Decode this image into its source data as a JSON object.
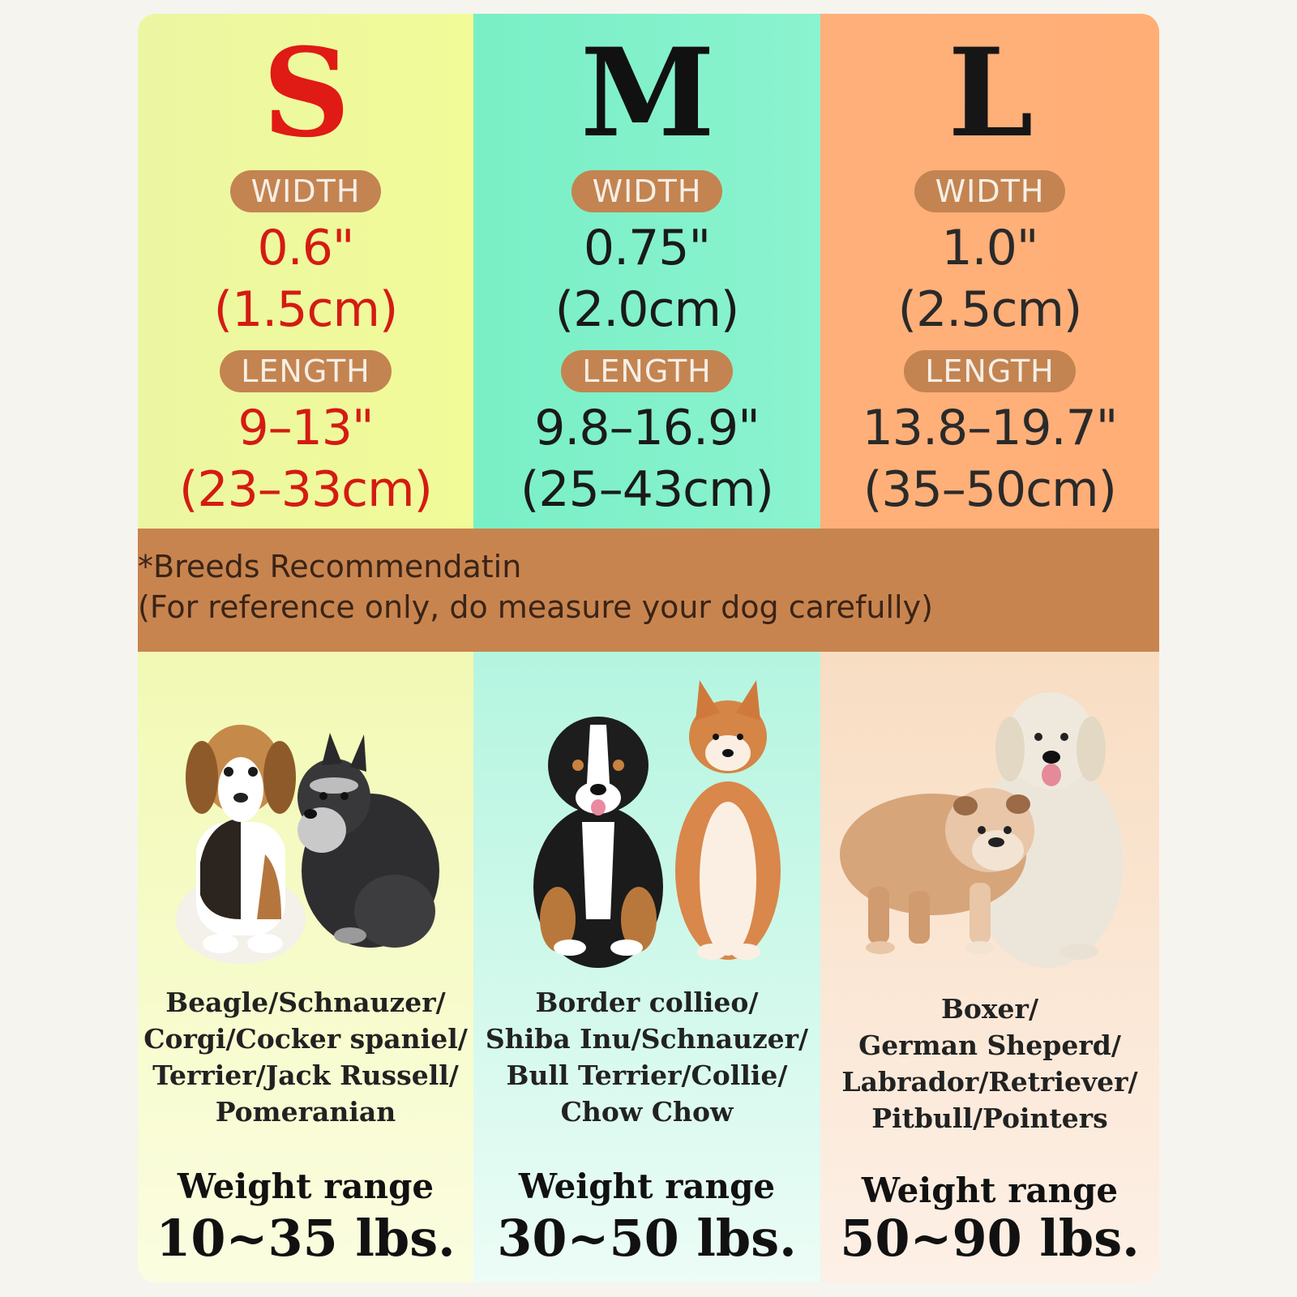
{
  "sizes": [
    {
      "letter": "S",
      "letter_color": "#e01a14",
      "value_color": "#d41b12",
      "width_label": "WIDTH",
      "width_in": "0.6\"",
      "width_cm": "(1.5cm)",
      "length_label": "LENGTH",
      "length_in": "9–13\"",
      "length_cm": "(23–33cm)",
      "breeds": [
        "Beagle/Schnauzer/",
        "Corgi/Cocker spaniel/",
        "Terrier/Jack Russell/",
        "Pomeranian"
      ],
      "weight_label": "Weight range",
      "weight_value": "10~35 lbs."
    },
    {
      "letter": "M",
      "letter_color": "#111111",
      "value_color": "#1a1a1a",
      "width_label": "WIDTH",
      "width_in": "0.75\"",
      "width_cm": "(2.0cm)",
      "length_label": "LENGTH",
      "length_in": "9.8–16.9\"",
      "length_cm": "(25–43cm)",
      "breeds": [
        "Border collieo/",
        "Shiba Inu/Schnauzer/",
        "Bull Terrier/Collie/",
        "Chow Chow"
      ],
      "weight_label": "Weight range",
      "weight_value": "30~50 lbs."
    },
    {
      "letter": "L",
      "letter_color": "#161616",
      "value_color": "#2a2a2a",
      "width_label": "WIDTH",
      "width_in": "1.0\"",
      "width_cm": "(2.5cm)",
      "length_label": "LENGTH",
      "length_in": "13.8–19.7\"",
      "length_cm": "(35–50cm)",
      "breeds": [
        "Boxer/",
        "German Sheperd/",
        "Labrador/Retriever/",
        "Pitbull/Pointers"
      ],
      "weight_label": "Weight range",
      "weight_value": "50~90 lbs."
    }
  ],
  "note": {
    "line1": "*Breeds Recommendatin",
    "line2": "(For reference only, do measure your dog carefully)"
  },
  "photos": [
    "beagle-and-schnauzer-photo",
    "bernese-and-shiba-photo",
    "bulldog-and-retriever-photo"
  ]
}
